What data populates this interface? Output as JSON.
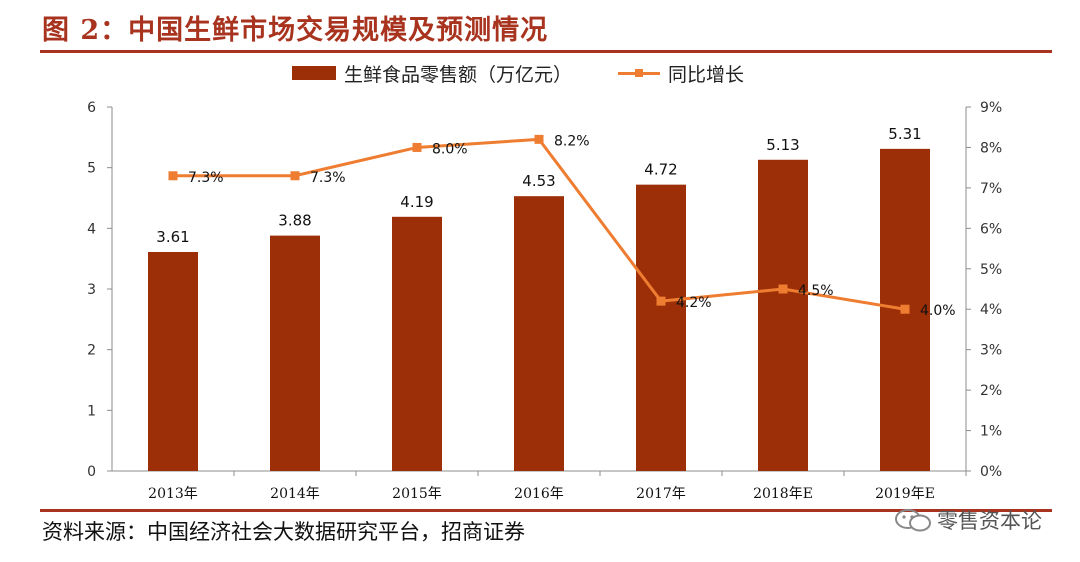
{
  "figure": {
    "title": "图 2：中国生鲜市场交易规模及预测情况",
    "source": "资料来源：中国经济社会大数据研究平台，招商证券",
    "watermark": "零售资本论"
  },
  "colors": {
    "bar": "#9c2f07",
    "line": "#ee7d31",
    "accent": "#a8331e"
  },
  "chart_data": {
    "type": "bar",
    "categories": [
      "2013年",
      "2014年",
      "2015年",
      "2016年",
      "2017年",
      "2018年E",
      "2019年E"
    ],
    "series": [
      {
        "name": "生鲜食品零售额（万亿元）",
        "type": "bar",
        "axis": "left",
        "values": [
          3.61,
          3.88,
          4.19,
          4.53,
          4.72,
          5.13,
          5.31
        ],
        "labels": [
          "3.61",
          "3.88",
          "4.19",
          "4.53",
          "4.72",
          "5.13",
          "5.31"
        ]
      },
      {
        "name": "同比增长",
        "type": "line",
        "axis": "right",
        "values": [
          7.3,
          7.3,
          8.0,
          8.2,
          4.2,
          4.5,
          4.0
        ],
        "labels": [
          "7.3%",
          "7.3%",
          "8.0%",
          "8.2%",
          "4.2%",
          "4.5%",
          "4.0%"
        ]
      }
    ],
    "y_left": {
      "min": 0,
      "max": 6,
      "ticks": [
        "0",
        "1",
        "2",
        "3",
        "4",
        "5",
        "6"
      ]
    },
    "y_right": {
      "min": 0,
      "max": 9,
      "ticks": [
        "0%",
        "1%",
        "2%",
        "3%",
        "4%",
        "5%",
        "6%",
        "7%",
        "8%",
        "9%"
      ]
    },
    "grid": false,
    "legend_position": "top"
  }
}
